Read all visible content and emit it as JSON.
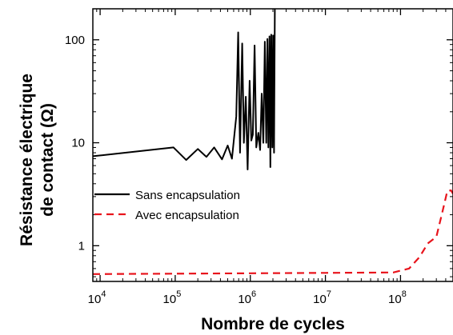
{
  "chart_data": {
    "type": "line",
    "title": "",
    "xlabel": "Nombre de cycles",
    "ylabel_lines": [
      "Résistance électrique",
      "de contact (Ω)"
    ],
    "xscale": "log",
    "yscale": "log",
    "xlim": [
      8000,
      500000000
    ],
    "ylim": [
      0.45,
      200
    ],
    "x_ticks": [
      {
        "value": 10000,
        "base": "10",
        "exp": "4"
      },
      {
        "value": 100000,
        "base": "10",
        "exp": "5"
      },
      {
        "value": 1000000,
        "base": "10",
        "exp": "6"
      },
      {
        "value": 10000000,
        "base": "10",
        "exp": "7"
      },
      {
        "value": 100000000,
        "base": "10",
        "exp": "8"
      }
    ],
    "y_ticks": [
      {
        "value": 1,
        "label": "1"
      },
      {
        "value": 10,
        "label": "10"
      },
      {
        "value": 100,
        "label": "100"
      }
    ],
    "legend_position": "lower-left",
    "series": [
      {
        "name": "Sans encapsulation",
        "color": "#000000",
        "style": "solid",
        "points": [
          [
            8000,
            7.4
          ],
          [
            95000,
            9.0
          ],
          [
            140000,
            6.8
          ],
          [
            200000,
            8.7
          ],
          [
            260000,
            7.3
          ],
          [
            330000,
            9.0
          ],
          [
            420000,
            6.9
          ],
          [
            500000,
            9.4
          ],
          [
            570000,
            7.0
          ],
          [
            650000,
            18
          ],
          [
            690000,
            118
          ],
          [
            730000,
            8.0
          ],
          [
            780000,
            92
          ],
          [
            820000,
            10.0
          ],
          [
            870000,
            28
          ],
          [
            920000,
            5.5
          ],
          [
            980000,
            40
          ],
          [
            1030000,
            10.5
          ],
          [
            1080000,
            12
          ],
          [
            1140000,
            88
          ],
          [
            1200000,
            9.0
          ],
          [
            1280000,
            12.5
          ],
          [
            1350000,
            8.5
          ],
          [
            1420000,
            30
          ],
          [
            1490000,
            10.0
          ],
          [
            1560000,
            96
          ],
          [
            1630000,
            10.0
          ],
          [
            1690000,
            102
          ],
          [
            1740000,
            9.0
          ],
          [
            1800000,
            108
          ],
          [
            1850000,
            5.8
          ],
          [
            1900000,
            112
          ],
          [
            1960000,
            9.0
          ],
          [
            2010000,
            110
          ],
          [
            2070000,
            8.0
          ],
          [
            2120000,
            200
          ]
        ]
      },
      {
        "name": "Avec encapsulation",
        "color": "#e8141c",
        "style": "dashed",
        "points": [
          [
            8000,
            0.53
          ],
          [
            1000000,
            0.54
          ],
          [
            10000000,
            0.545
          ],
          [
            80000000,
            0.55
          ],
          [
            130000000,
            0.6
          ],
          [
            180000000,
            0.78
          ],
          [
            230000000,
            1.05
          ],
          [
            300000000,
            1.22
          ],
          [
            360000000,
            2.1
          ],
          [
            420000000,
            3.4
          ],
          [
            470000000,
            3.45
          ],
          [
            500000000,
            3.2
          ]
        ]
      }
    ]
  }
}
